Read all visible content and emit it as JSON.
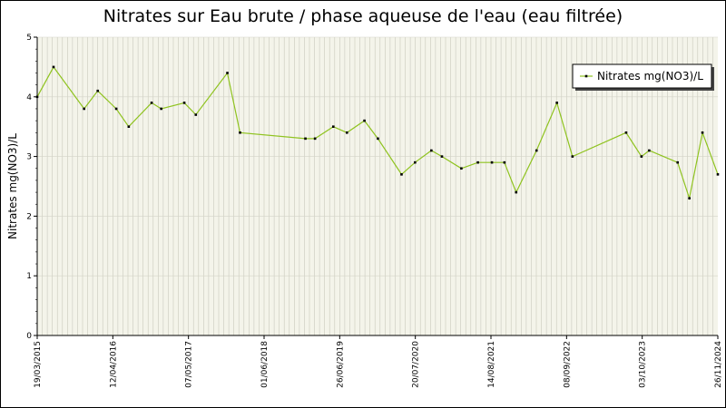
{
  "chart_data": {
    "type": "line",
    "title": "Nitrates sur Eau brute / phase aqueuse de l'eau (eau filtrée)",
    "ylabel": "Nitrates mg(NO3)/L",
    "xlabel": "",
    "ylim": [
      0,
      5
    ],
    "yticks": [
      0,
      1,
      2,
      3,
      4,
      5
    ],
    "xlim": [
      "2015-03-19",
      "2024-11-26"
    ],
    "xtick_labels": [
      "19/03/2015",
      "12/04/2016",
      "07/05/2017",
      "01/06/2018",
      "26/06/2019",
      "20/07/2020",
      "14/08/2021",
      "08/09/2022",
      "03/10/2023",
      "26/11/2024"
    ],
    "grid": true,
    "legend_position": "top-right",
    "series": [
      {
        "name": "Nitrates mg(NO3)/L",
        "color": "#8fc31f",
        "points": [
          {
            "x": "2015-03-19",
            "y": 4.0
          },
          {
            "x": "2015-06-12",
            "y": 4.5
          },
          {
            "x": "2015-11-18",
            "y": 3.8
          },
          {
            "x": "2016-01-28",
            "y": 4.1
          },
          {
            "x": "2016-05-03",
            "y": 3.8
          },
          {
            "x": "2016-07-07",
            "y": 3.5
          },
          {
            "x": "2016-11-03",
            "y": 3.9
          },
          {
            "x": "2016-12-23",
            "y": 3.8
          },
          {
            "x": "2017-04-22",
            "y": 3.9
          },
          {
            "x": "2017-06-21",
            "y": 3.7
          },
          {
            "x": "2017-12-02",
            "y": 4.4
          },
          {
            "x": "2018-02-06",
            "y": 3.4
          },
          {
            "x": "2019-01-12",
            "y": 3.3
          },
          {
            "x": "2019-03-03",
            "y": 3.3
          },
          {
            "x": "2019-06-06",
            "y": 3.5
          },
          {
            "x": "2019-08-16",
            "y": 3.4
          },
          {
            "x": "2019-11-15",
            "y": 3.6
          },
          {
            "x": "2020-01-24",
            "y": 3.3
          },
          {
            "x": "2020-05-26",
            "y": 2.7
          },
          {
            "x": "2020-08-04",
            "y": 2.9
          },
          {
            "x": "2020-10-28",
            "y": 3.1
          },
          {
            "x": "2020-12-22",
            "y": 3.0
          },
          {
            "x": "2021-04-02",
            "y": 2.8
          },
          {
            "x": "2021-06-27",
            "y": 2.9
          },
          {
            "x": "2021-09-08",
            "y": 2.9
          },
          {
            "x": "2021-11-12",
            "y": 2.9
          },
          {
            "x": "2022-01-12",
            "y": 2.4
          },
          {
            "x": "2022-04-28",
            "y": 3.1
          },
          {
            "x": "2022-08-12",
            "y": 3.9
          },
          {
            "x": "2022-11-01",
            "y": 3.0
          },
          {
            "x": "2023-08-07",
            "y": 3.4
          },
          {
            "x": "2023-10-26",
            "y": 3.0
          },
          {
            "x": "2023-12-05",
            "y": 3.1
          },
          {
            "x": "2024-05-01",
            "y": 2.9
          },
          {
            "x": "2024-07-01",
            "y": 2.3
          },
          {
            "x": "2024-09-07",
            "y": 3.4
          },
          {
            "x": "2024-11-26",
            "y": 2.7
          }
        ]
      }
    ]
  }
}
